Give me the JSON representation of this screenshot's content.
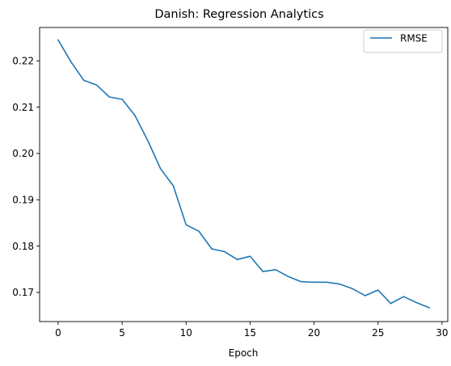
{
  "chart_data": {
    "type": "line",
    "title": "Danish: Regression Analytics",
    "xlabel": "Epoch",
    "ylabel": "",
    "xlim": [
      -1.45,
      30.45
    ],
    "ylim": [
      0.1637,
      0.2272
    ],
    "x_ticks": [
      0,
      5,
      10,
      15,
      20,
      25,
      30
    ],
    "y_ticks": [
      0.17,
      0.18,
      0.19,
      0.2,
      0.21,
      0.22
    ],
    "x_tick_labels": [
      "0",
      "5",
      "10",
      "15",
      "20",
      "25",
      "30"
    ],
    "y_tick_labels": [
      "0.17",
      "0.18",
      "0.19",
      "0.20",
      "0.21",
      "0.22"
    ],
    "grid": false,
    "legend_position": "upper right",
    "series": [
      {
        "name": "RMSE",
        "color": "#1f77b4",
        "x": [
          0,
          1,
          2,
          3,
          4,
          5,
          6,
          7,
          8,
          9,
          10,
          11,
          12,
          13,
          14,
          15,
          16,
          17,
          18,
          19,
          20,
          21,
          22,
          23,
          24,
          25,
          26,
          27,
          28,
          29
        ],
        "values": [
          0.2245,
          0.2198,
          0.2158,
          0.2148,
          0.2122,
          0.2117,
          0.2082,
          0.2028,
          0.1967,
          0.193,
          0.1846,
          0.1832,
          0.1794,
          0.1788,
          0.1771,
          0.1778,
          0.1745,
          0.1749,
          0.1734,
          0.1723,
          0.1722,
          0.1722,
          0.1718,
          0.1708,
          0.1693,
          0.1705,
          0.1676,
          0.1691,
          0.1678,
          0.1667
        ]
      }
    ]
  }
}
